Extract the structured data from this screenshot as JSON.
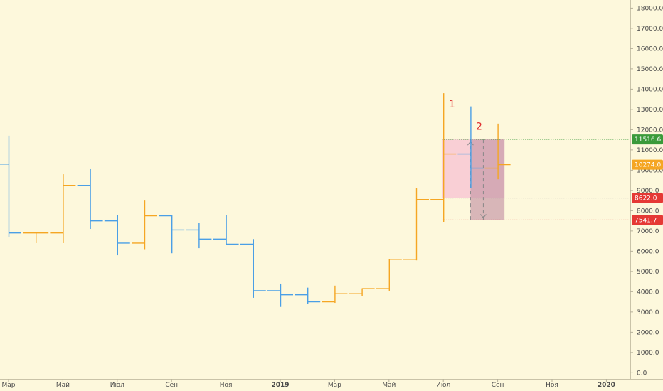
{
  "chart_data": {
    "type": "ohlc",
    "timeframe": "monthly",
    "ylim": [
      -900,
      18400
    ],
    "y_ticks": [
      0,
      1000,
      2000,
      3000,
      4000,
      5000,
      6000,
      7000,
      8000,
      9000,
      10000,
      11000,
      12000,
      13000,
      14000,
      15000,
      16000,
      17000,
      18000
    ],
    "y_tick_labels": [
      "0.0",
      "1000.0",
      "2000.0",
      "3000.0",
      "4000.0",
      "5000.0",
      "6000.0",
      "7000.0",
      "8000.0",
      "9000.0",
      "10000.0",
      "11000.0",
      "12000.0",
      "13000.0",
      "14000.0",
      "15000.0",
      "16000.0",
      "17000.0",
      "18000.0"
    ],
    "x_labels": [
      {
        "text": "Мар",
        "bold": false,
        "idx": 0
      },
      {
        "text": "Май",
        "bold": false,
        "idx": 2
      },
      {
        "text": "Июл",
        "bold": false,
        "idx": 4
      },
      {
        "text": "Сен",
        "bold": false,
        "idx": 6
      },
      {
        "text": "Ноя",
        "bold": false,
        "idx": 8
      },
      {
        "text": "2019",
        "bold": true,
        "idx": 10
      },
      {
        "text": "Мар",
        "bold": false,
        "idx": 12
      },
      {
        "text": "Май",
        "bold": false,
        "idx": 14
      },
      {
        "text": "Июл",
        "bold": false,
        "idx": 16
      },
      {
        "text": "Сен",
        "bold": false,
        "idx": 18
      },
      {
        "text": "Ноя",
        "bold": false,
        "idx": 20
      },
      {
        "text": "2020",
        "bold": true,
        "idx": 22
      }
    ],
    "colors": {
      "up": "#f5a623",
      "down": "#4a9fe6",
      "background": "#fdf8dc"
    },
    "bars": [
      {
        "o": 10300,
        "h": 11700,
        "l": 6700,
        "c": 6900
      },
      {
        "o": 6900,
        "h": 6950,
        "l": 6400,
        "c": 6900
      },
      {
        "o": 6900,
        "h": 9800,
        "l": 6400,
        "c": 9250
      },
      {
        "o": 9250,
        "h": 10050,
        "l": 7100,
        "c": 7500
      },
      {
        "o": 7500,
        "h": 7800,
        "l": 5800,
        "c": 6400
      },
      {
        "o": 6400,
        "h": 8500,
        "l": 6100,
        "c": 7750
      },
      {
        "o": 7750,
        "h": 7800,
        "l": 5900,
        "c": 7050
      },
      {
        "o": 7050,
        "h": 7400,
        "l": 6150,
        "c": 6600
      },
      {
        "o": 6600,
        "h": 7800,
        "l": 6300,
        "c": 6350
      },
      {
        "o": 6350,
        "h": 6600,
        "l": 3700,
        "c": 4050
      },
      {
        "o": 4050,
        "h": 4400,
        "l": 3250,
        "c": 3850
      },
      {
        "o": 3850,
        "h": 4200,
        "l": 3400,
        "c": 3500
      },
      {
        "o": 3500,
        "h": 4300,
        "l": 3450,
        "c": 3900
      },
      {
        "o": 3900,
        "h": 4150,
        "l": 3800,
        "c": 4150
      },
      {
        "o": 4150,
        "h": 5600,
        "l": 4050,
        "c": 5600
      },
      {
        "o": 5600,
        "h": 9100,
        "l": 5550,
        "c": 8550
      },
      {
        "o": 8550,
        "h": 13800,
        "l": 7450,
        "c": 10800
      },
      {
        "o": 10800,
        "h": 13150,
        "l": 9100,
        "c": 10100
      },
      {
        "o": 10100,
        "h": 12300,
        "l": 9550,
        "c": 10274
      }
    ],
    "annotations": [
      {
        "text": "1",
        "bar_idx": 16.2,
        "y": 13100
      },
      {
        "text": "2",
        "bar_idx": 17.2,
        "y": 12000
      }
    ],
    "position_box": {
      "x0_idx": 15.95,
      "x1_idx": 18.25,
      "entry_x_idx": 17.0,
      "top": 11516.6,
      "entry": 8622.0,
      "stop": 7541.7,
      "profit_color": "#f7c2d3",
      "loss_color": "#c79aa8"
    },
    "price_tags": [
      {
        "label": "11516.6",
        "value": 11516.6,
        "color": "#3a9a3a",
        "line_color": "#3a9a3a"
      },
      {
        "label": "10274.0",
        "value": 10274.0,
        "color": "#f5a623",
        "line_color": null
      },
      {
        "label": "8622.0",
        "value": 8622.0,
        "color": "#e53935",
        "line_color": "#999999"
      },
      {
        "label": "7541.7",
        "value": 7541.7,
        "color": "#e53935",
        "line_color": "#e53935"
      }
    ]
  }
}
